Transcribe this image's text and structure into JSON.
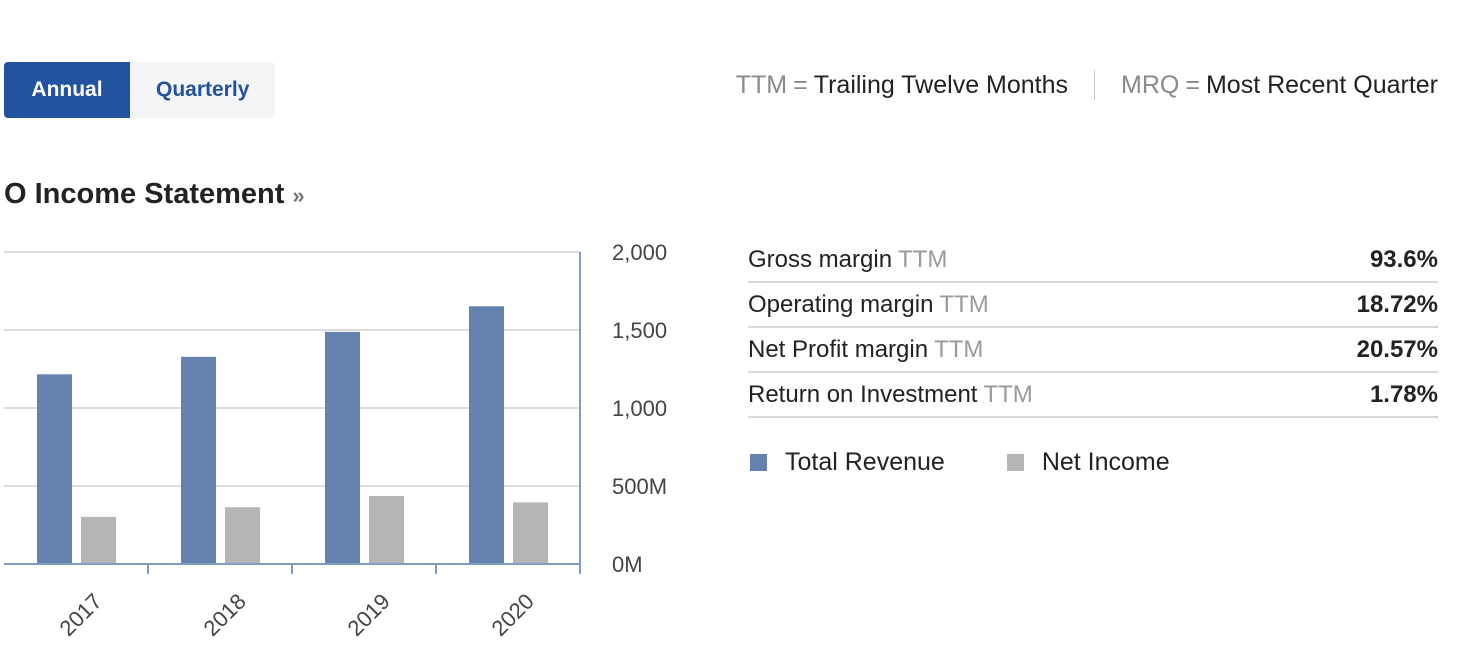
{
  "toggle": {
    "annual": "Annual",
    "quarterly": "Quarterly",
    "selected": "Annual"
  },
  "legend_bar": {
    "ttm_abbr": "TTM",
    "ttm_eq": "=",
    "ttm_full": "Trailing Twelve Months",
    "mrq_abbr": "MRQ",
    "mrq_eq": "=",
    "mrq_full": "Most Recent Quarter"
  },
  "section": {
    "title": "O Income Statement",
    "chevron": "»"
  },
  "metrics": [
    {
      "label": "Gross margin",
      "ttm": "TTM",
      "value": "93.6%"
    },
    {
      "label": "Operating margin",
      "ttm": "TTM",
      "value": "18.72%"
    },
    {
      "label": "Net Profit margin",
      "ttm": "TTM",
      "value": "20.57%"
    },
    {
      "label": "Return on Investment",
      "ttm": "TTM",
      "value": "1.78%"
    }
  ],
  "colors": {
    "revenue": "#6383ae",
    "net_income": "#b5b5b5",
    "accent": "#2253a0"
  },
  "chart_data": {
    "type": "bar",
    "categories": [
      "2017",
      "2018",
      "2019",
      "2020"
    ],
    "series": [
      {
        "name": "Total Revenue",
        "values": [
          1216,
          1328,
          1488,
          1652
        ]
      },
      {
        "name": "Net Income",
        "values": [
          302,
          364,
          436,
          395
        ]
      }
    ],
    "y_ticks": [
      "0M",
      "500M",
      "1,000",
      "1,500",
      "2,000"
    ],
    "y_tick_values": [
      0,
      500,
      1000,
      1500,
      2000
    ],
    "ylim": [
      0,
      2000
    ],
    "grid": true,
    "legend_position": "bottom-right",
    "xlabel": "",
    "ylabel": ""
  }
}
